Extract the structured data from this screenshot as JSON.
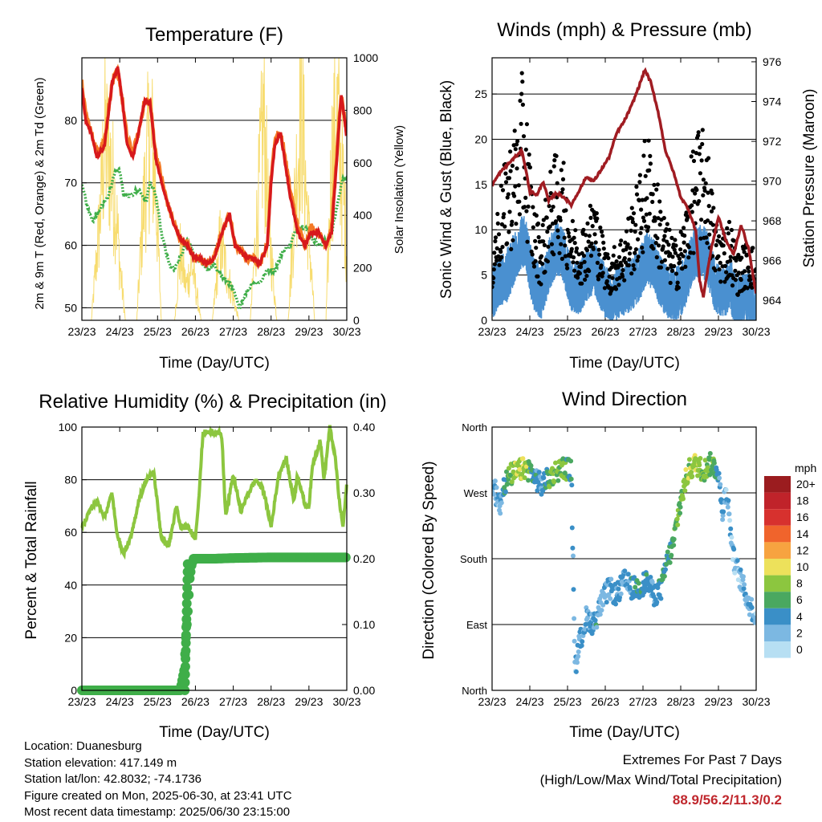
{
  "x_tick_labels": [
    "23/23",
    "24/23",
    "25/23",
    "26/23",
    "27/23",
    "28/23",
    "29/23",
    "30/23"
  ],
  "chart_data": [
    {
      "type": "line",
      "title": "Temperature (F)",
      "xlabel": "Time (Day/UTC)",
      "ylabel": "2m & 9m T (Red, Orange) & 2m Td (Green)",
      "ylabel_right": "Solar Insolation (Yellow)",
      "x_ticks": [
        "23/23",
        "24/23",
        "25/23",
        "26/23",
        "27/23",
        "28/23",
        "29/23",
        "30/23"
      ],
      "ylim": [
        48,
        90
      ],
      "y_ticks": [
        50,
        60,
        70,
        80
      ],
      "y2lim": [
        0,
        1000
      ],
      "y2_ticks": [
        0,
        200,
        400,
        600,
        800,
        1000
      ],
      "grid": true,
      "colors": {
        "t2m": "#d7191c",
        "t9m": "#f47a26",
        "td": "#3fae49",
        "solar": "#f7dc6f"
      },
      "series": [
        {
          "name": "2m T",
          "axis": "left",
          "x": [
            0,
            0.1,
            0.25,
            0.4,
            0.6,
            0.8,
            0.95,
            1.05,
            1.2,
            1.35,
            1.5,
            1.65,
            1.8,
            1.95,
            2.1,
            2.25,
            2.4,
            2.6,
            2.8,
            2.95,
            3.1,
            3.3,
            3.5,
            3.7,
            3.9,
            4.05,
            4.2,
            4.35,
            4.5,
            4.7,
            4.9,
            5.0,
            5.1,
            5.25,
            5.35,
            5.5,
            5.7,
            5.9,
            6.05,
            6.25,
            6.45,
            6.6,
            6.75,
            6.85,
            6.95,
            7.0
          ],
          "y": [
            85,
            80,
            78,
            74,
            76,
            86,
            88.5,
            84,
            76,
            74,
            78,
            83,
            83,
            74,
            70,
            67,
            64,
            61,
            60,
            58,
            58,
            57,
            58,
            62,
            65,
            60,
            59,
            58,
            58,
            57,
            60,
            70,
            76,
            78,
            74,
            68,
            62,
            60,
            62,
            62,
            60,
            62,
            75,
            84,
            80,
            77
          ]
        },
        {
          "name": "9m T",
          "axis": "left",
          "x": [
            0,
            0.1,
            0.25,
            0.4,
            0.6,
            0.8,
            0.95,
            1.05,
            1.2,
            1.35,
            1.5,
            1.65,
            1.8,
            1.95,
            2.1,
            2.25,
            2.4,
            2.6,
            2.8,
            2.95,
            3.1,
            3.3,
            3.5,
            3.7,
            3.9,
            4.05,
            4.2,
            4.35,
            4.5,
            4.7,
            4.9,
            5.0,
            5.1,
            5.25,
            5.35,
            5.5,
            5.7,
            5.9,
            6.05,
            6.25,
            6.45,
            6.6,
            6.75,
            6.85,
            6.95,
            7.0
          ],
          "y": [
            86,
            81,
            78,
            75,
            77,
            86,
            88,
            84,
            77,
            75,
            78,
            83,
            83,
            75,
            71,
            67,
            64,
            61,
            60,
            58,
            58,
            57,
            58,
            62,
            65,
            60,
            59,
            58,
            58,
            57,
            60,
            71,
            77,
            78,
            75,
            69,
            63,
            60,
            63,
            62,
            60,
            63,
            76,
            84,
            80,
            77
          ]
        },
        {
          "name": "2m Td",
          "axis": "left",
          "x": [
            0,
            0.15,
            0.3,
            0.5,
            0.7,
            0.9,
            1.0,
            1.1,
            1.3,
            1.5,
            1.7,
            1.8,
            1.95,
            2.1,
            2.3,
            2.45,
            2.6,
            2.8,
            3.0,
            3.2,
            3.35,
            3.5,
            3.7,
            3.9,
            4.05,
            4.15,
            4.3,
            4.5,
            4.7,
            4.9,
            5.1,
            5.3,
            5.5,
            5.7,
            5.9,
            6.1,
            6.3,
            6.5,
            6.6,
            6.8,
            6.9,
            7.0
          ],
          "y": [
            70,
            66,
            64,
            66,
            68,
            72,
            72,
            68,
            68,
            69,
            67,
            70,
            68,
            62,
            57,
            56,
            58,
            61,
            58,
            57,
            56,
            57,
            55,
            54,
            52,
            50,
            52,
            54,
            54,
            56,
            56,
            59,
            60,
            63,
            63,
            61,
            60,
            61,
            62,
            68,
            71,
            70
          ]
        },
        {
          "name": "Solar Insolation",
          "axis": "right",
          "x": [
            0,
            0.25,
            0.45,
            0.6,
            0.75,
            0.9,
            1.0,
            1.15,
            1.45,
            1.6,
            1.8,
            1.95,
            2.1,
            2.45,
            2.6,
            2.75,
            2.9,
            3.05,
            3.15,
            3.45,
            3.65,
            3.85,
            4.0,
            4.15,
            4.45,
            4.65,
            4.8,
            4.95,
            5.15,
            5.45,
            5.65,
            5.8,
            5.95,
            6.15,
            6.45,
            6.6,
            6.75,
            6.9,
            7.0
          ],
          "y": [
            0,
            0,
            400,
            800,
            700,
            500,
            250,
            0,
            0,
            450,
            850,
            600,
            0,
            0,
            300,
            150,
            250,
            100,
            0,
            0,
            350,
            200,
            100,
            0,
            0,
            500,
            900,
            400,
            0,
            0,
            600,
            950,
            500,
            0,
            0,
            700,
            900,
            600,
            300
          ]
        }
      ]
    },
    {
      "type": "scatter",
      "title": "Winds (mph) & Pressure (mb)",
      "xlabel": "Time (Day/UTC)",
      "ylabel": "Sonic Wind & Gust (Blue, Black)",
      "ylabel_right": "Station Pressure (Maroon)",
      "x_ticks": [
        "23/23",
        "24/23",
        "25/23",
        "26/23",
        "27/23",
        "28/23",
        "29/23",
        "30/23"
      ],
      "ylim": [
        0,
        29
      ],
      "y_ticks": [
        0,
        5,
        10,
        15,
        20,
        25
      ],
      "y2lim": [
        963,
        976.2
      ],
      "y2_ticks": [
        964,
        966,
        968,
        970,
        972,
        974,
        976
      ],
      "grid": true,
      "colors": {
        "wind": "#4a90d0",
        "gust": "#000000",
        "pressure": "#a01c22"
      },
      "series": [
        {
          "name": "Sonic Wind",
          "axis": "left",
          "kind": "band",
          "x": [
            0,
            0.2,
            0.4,
            0.6,
            0.8,
            0.9,
            1.1,
            1.3,
            1.5,
            1.7,
            1.9,
            2.1,
            2.3,
            2.5,
            2.7,
            2.9,
            3.1,
            3.3,
            3.5,
            3.7,
            3.9,
            4.1,
            4.3,
            4.5,
            4.7,
            4.9,
            5.1,
            5.3,
            5.5,
            5.7,
            5.9,
            6.1,
            6.3,
            6.5,
            6.7,
            6.9,
            7.0
          ],
          "y": [
            3,
            4.5,
            5,
            7,
            9,
            8,
            4,
            3,
            6,
            8,
            7,
            4,
            3.5,
            5,
            6,
            4,
            2.5,
            3,
            3.5,
            4,
            5,
            7,
            6,
            4,
            3,
            3,
            4,
            7,
            8,
            7,
            4,
            3,
            4,
            2,
            3,
            2,
            1.5
          ]
        },
        {
          "name": "Gust",
          "axis": "left",
          "kind": "points",
          "x": [
            0,
            0.2,
            0.4,
            0.6,
            0.8,
            0.9,
            1.1,
            1.3,
            1.5,
            1.7,
            1.9,
            2.1,
            2.3,
            2.5,
            2.7,
            2.9,
            3.1,
            3.3,
            3.5,
            3.7,
            3.9,
            4.1,
            4.3,
            4.5,
            4.7,
            4.9,
            5.1,
            5.3,
            5.5,
            5.7,
            5.9,
            6.1,
            6.3,
            6.5,
            6.7,
            6.9,
            7.0
          ],
          "y": [
            6,
            10,
            13,
            15,
            19,
            17,
            9,
            7,
            11,
            13,
            12,
            8,
            7,
            8,
            10,
            7,
            5,
            6,
            7,
            9,
            11,
            15,
            12,
            9,
            7,
            6,
            8,
            13,
            15,
            14,
            8,
            7,
            8,
            5,
            6,
            6,
            4
          ]
        },
        {
          "name": "Station Pressure",
          "axis": "right",
          "kind": "line",
          "x": [
            0,
            0.2,
            0.4,
            0.6,
            0.8,
            1.0,
            1.2,
            1.35,
            1.5,
            1.7,
            1.9,
            2.1,
            2.3,
            2.5,
            2.7,
            2.9,
            3.1,
            3.3,
            3.5,
            3.7,
            3.9,
            4.05,
            4.2,
            4.4,
            4.6,
            4.8,
            5.0,
            5.2,
            5.4,
            5.5,
            5.6,
            5.8,
            6.0,
            6.2,
            6.4,
            6.6,
            6.8,
            7.0
          ],
          "y": [
            969.8,
            970.4,
            970.8,
            971.2,
            971.5,
            969.5,
            969.3,
            970,
            969,
            969.4,
            969.2,
            968.8,
            969.5,
            970.2,
            970,
            970.6,
            971.2,
            972.4,
            973,
            973.8,
            974.8,
            975.6,
            975,
            973.5,
            971.5,
            970.5,
            969.2,
            968.6,
            967.5,
            965,
            964.2,
            966.5,
            968.2,
            967,
            966.3,
            967.8,
            966.6,
            964.3
          ]
        }
      ]
    },
    {
      "type": "line",
      "title": "Relative Humidity (%) & Precipitation (in)",
      "xlabel": "Time (Day/UTC)",
      "ylabel": "Percent & Total Rainfall",
      "x_ticks": [
        "23/23",
        "24/23",
        "25/23",
        "26/23",
        "27/23",
        "28/23",
        "29/23",
        "30/23"
      ],
      "ylim": [
        0,
        100
      ],
      "y_ticks": [
        0,
        20,
        40,
        60,
        80,
        100
      ],
      "y2lim": [
        0,
        0.4
      ],
      "y2_ticks": [
        "0.00",
        "0.10",
        "0.20",
        "0.30",
        "0.40"
      ],
      "grid": true,
      "colors": {
        "rh": "#8cc63f",
        "precip": "#3fae49"
      },
      "series": [
        {
          "name": "Relative Humidity",
          "axis": "left",
          "x": [
            0,
            0.2,
            0.4,
            0.6,
            0.8,
            0.9,
            1.0,
            1.1,
            1.3,
            1.5,
            1.7,
            1.9,
            2.1,
            2.3,
            2.5,
            2.6,
            2.8,
            2.9,
            3.0,
            3.1,
            3.2,
            3.4,
            3.6,
            3.7,
            3.8,
            4.0,
            4.2,
            4.4,
            4.6,
            4.8,
            5.0,
            5.2,
            5.4,
            5.6,
            5.7,
            5.9,
            6.0,
            6.1,
            6.3,
            6.4,
            6.55,
            6.7,
            6.8,
            6.9,
            7.0
          ],
          "y": [
            62,
            68,
            72,
            66,
            75,
            62,
            56,
            52,
            58,
            72,
            80,
            83,
            58,
            55,
            70,
            62,
            62,
            60,
            58,
            75,
            98,
            98,
            98,
            96,
            66,
            82,
            68,
            75,
            80,
            76,
            62,
            82,
            88,
            72,
            82,
            70,
            70,
            86,
            95,
            80,
            100,
            88,
            72,
            62,
            78
          ]
        },
        {
          "name": "Total Rainfall",
          "axis": "right",
          "x": [
            0,
            2.6,
            2.7,
            2.75,
            2.8,
            2.85,
            2.9,
            2.95,
            3.0,
            3.5,
            4.0,
            5.0,
            6.0,
            7.0
          ],
          "y": [
            0,
            0,
            0.03,
            0.08,
            0.12,
            0.17,
            0.19,
            0.2,
            0.2,
            0.2,
            0.201,
            0.202,
            0.202,
            0.202
          ]
        }
      ]
    },
    {
      "type": "scatter",
      "title": "Wind Direction",
      "xlabel": "Time (Day/UTC)",
      "ylabel": "Direction (Colored By Speed)",
      "x_ticks": [
        "23/23",
        "24/23",
        "25/23",
        "26/23",
        "27/23",
        "28/23",
        "29/23",
        "30/23"
      ],
      "ylim": [
        0,
        360
      ],
      "y_ticks": [
        "North",
        "East",
        "South",
        "West",
        "North"
      ],
      "grid": true,
      "colorbar": {
        "title": "mph",
        "levels": [
          "20+",
          "18",
          "16",
          "14",
          "12",
          "10",
          "8",
          "6",
          "4",
          "2",
          "0"
        ],
        "colors": [
          "#9b1c1f",
          "#c0232a",
          "#d7312e",
          "#f0642c",
          "#f7a340",
          "#ede15b",
          "#8cc63f",
          "#4aa860",
          "#3a8fc7",
          "#7cb8e2",
          "#b7dff3"
        ]
      },
      "series": [
        {
          "name": "Direction",
          "x": [
            0,
            0.1,
            0.2,
            0.3,
            0.5,
            0.7,
            0.9,
            1.1,
            1.3,
            1.5,
            1.7,
            1.9,
            2.1,
            2.2,
            2.3,
            2.5,
            2.7,
            2.9,
            3.1,
            3.3,
            3.5,
            3.7,
            3.9,
            4.1,
            4.3,
            4.5,
            4.6,
            4.8,
            5.0,
            5.2,
            5.4,
            5.6,
            5.8,
            6.0,
            6.1,
            6.2,
            6.4,
            6.6,
            6.8,
            7.0
          ],
          "y": [
            280,
            270,
            250,
            280,
            295,
            300,
            305,
            295,
            280,
            290,
            300,
            305,
            300,
            30,
            60,
            100,
            90,
            120,
            140,
            130,
            150,
            140,
            140,
            150,
            130,
            140,
            170,
            200,
            260,
            300,
            310,
            300,
            310,
            300,
            240,
            280,
            180,
            150,
            120,
            100
          ],
          "speed": [
            3,
            3,
            2,
            5,
            7,
            9,
            8,
            4,
            3,
            6,
            8,
            7,
            5,
            2,
            3,
            3,
            4,
            3,
            3,
            4,
            3,
            4,
            5,
            4,
            3,
            5,
            5,
            6,
            7,
            8,
            9,
            8,
            7,
            4,
            3,
            2,
            2,
            2,
            3,
            2
          ]
        }
      ]
    }
  ],
  "info": {
    "location": "Location: Duanesburg",
    "elevation": "Station elevation: 417.149 m",
    "latlon": "Station lat/lon: 42.8032; -74.1736",
    "created": "Figure created on Mon, 2025-06-30, at 23:41 UTC",
    "timestamp": "Most recent data timestamp: 2025/06/30 23:15:00"
  },
  "extremes": {
    "title": "Extremes For Past 7 Days",
    "subtitle": "(High/Low/Max Wind/Total Precipitation)",
    "values": "88.9/56.2/11.3/0.2"
  }
}
